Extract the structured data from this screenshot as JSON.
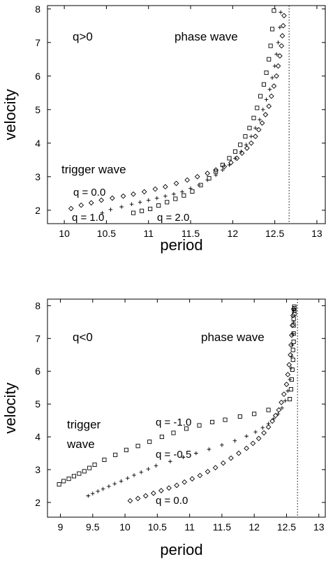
{
  "chart_data": [
    {
      "type": "scatter",
      "xlabel": "period",
      "ylabel": "velocity",
      "xlim": [
        9.8,
        13.1
      ],
      "ylim": [
        1.6,
        8.1
      ],
      "xticks": [
        "10",
        "10.5",
        "11",
        "11.5",
        "12",
        "12.5",
        "13"
      ],
      "yticks": [
        "2",
        "3",
        "4",
        "5",
        "6",
        "7",
        "8"
      ],
      "vline": 12.67,
      "annotations": {
        "sign": "q>0",
        "phase": "phase wave",
        "trigger": "trigger wave",
        "q_a": "q = 0.0",
        "q_b": "q = 1.0",
        "q_c": "q = 2.0"
      },
      "series": [
        {
          "name": "q = 0.0",
          "marker": "diamond",
          "x": [
            10.08,
            10.2,
            10.32,
            10.44,
            10.57,
            10.7,
            10.82,
            10.95,
            11.08,
            11.2,
            11.33,
            11.46,
            11.58,
            11.7,
            11.8,
            11.9,
            11.98,
            12.05,
            12.11,
            12.17,
            12.22,
            12.27,
            12.31,
            12.35,
            12.39,
            12.43,
            12.46,
            12.49,
            12.52,
            12.54,
            12.56,
            12.58,
            12.59,
            12.6,
            12.61
          ],
          "y": [
            2.05,
            2.15,
            2.22,
            2.3,
            2.36,
            2.42,
            2.48,
            2.55,
            2.63,
            2.7,
            2.8,
            2.9,
            3.0,
            3.1,
            3.2,
            3.3,
            3.42,
            3.55,
            3.7,
            3.85,
            4.0,
            4.2,
            4.4,
            4.6,
            4.85,
            5.1,
            5.4,
            5.7,
            6.0,
            6.3,
            6.6,
            6.9,
            7.2,
            7.5,
            7.8
          ]
        },
        {
          "name": "q = 1.0",
          "marker": "plus",
          "x": [
            10.45,
            10.55,
            10.68,
            10.8,
            10.9,
            11.0,
            11.1,
            11.2,
            11.3,
            11.4,
            11.5,
            11.6,
            11.7,
            11.8,
            11.88,
            11.96,
            12.03,
            12.1,
            12.16,
            12.22,
            12.27,
            12.32,
            12.36,
            12.4,
            12.44,
            12.47,
            12.5,
            12.52,
            12.54,
            12.56,
            12.57
          ],
          "y": [
            1.92,
            2.02,
            2.1,
            2.18,
            2.24,
            2.3,
            2.36,
            2.42,
            2.48,
            2.55,
            2.65,
            2.75,
            2.9,
            3.05,
            3.2,
            3.35,
            3.55,
            3.75,
            3.95,
            4.2,
            4.45,
            4.7,
            5.0,
            5.3,
            5.6,
            5.95,
            6.3,
            6.65,
            7.0,
            7.45,
            7.9
          ]
        },
        {
          "name": "q = 2.0",
          "marker": "square",
          "x": [
            10.82,
            10.92,
            11.02,
            11.12,
            11.22,
            11.32,
            11.42,
            11.52,
            11.62,
            11.72,
            11.8,
            11.88,
            11.96,
            12.03,
            12.09,
            12.15,
            12.2,
            12.25,
            12.29,
            12.33,
            12.37,
            12.4,
            12.43,
            12.45,
            12.47,
            12.49
          ],
          "y": [
            1.92,
            1.98,
            2.04,
            2.14,
            2.24,
            2.34,
            2.44,
            2.56,
            2.75,
            2.95,
            3.15,
            3.35,
            3.55,
            3.75,
            3.95,
            4.2,
            4.45,
            4.75,
            5.05,
            5.4,
            5.75,
            6.1,
            6.5,
            6.9,
            7.4,
            7.95
          ]
        }
      ]
    },
    {
      "type": "scatter",
      "xlabel": "period",
      "ylabel": "velocity",
      "xlim": [
        8.8,
        13.1
      ],
      "ylim": [
        1.55,
        8.2
      ],
      "xticks": [
        "9",
        "9.5",
        "10",
        "10.5",
        "11",
        "11.5",
        "12",
        "12.5",
        "13"
      ],
      "yticks": [
        "2",
        "3",
        "4",
        "5",
        "6",
        "7",
        "8"
      ],
      "vline": 12.67,
      "annotations": {
        "sign": "q<0",
        "phase": "phase wave",
        "trigger_1": "trigger",
        "trigger_2": "wave",
        "q_a": "q = -1.0",
        "q_b": "q = -0.5",
        "q_c": "q = 0.0"
      },
      "series": [
        {
          "name": "q = -1.0",
          "marker": "square",
          "x": [
            8.98,
            9.05,
            9.13,
            9.21,
            9.29,
            9.37,
            9.45,
            9.53,
            9.68,
            9.85,
            10.02,
            10.2,
            10.38,
            10.57,
            10.75,
            10.95,
            11.15,
            11.35,
            11.55,
            11.78,
            12.0,
            12.22,
            12.55,
            12.57,
            12.58,
            12.59,
            12.6,
            12.6,
            12.61,
            12.61,
            12.61,
            12.61,
            12.62,
            12.62,
            12.62,
            12.62
          ],
          "y": [
            2.55,
            2.65,
            2.72,
            2.8,
            2.88,
            2.95,
            3.05,
            3.15,
            3.3,
            3.45,
            3.6,
            3.72,
            3.85,
            4.0,
            4.12,
            4.25,
            4.35,
            4.45,
            4.52,
            4.62,
            4.7,
            4.82,
            5.15,
            5.45,
            5.75,
            6.05,
            6.35,
            6.65,
            6.9,
            7.15,
            7.4,
            7.6,
            7.75,
            7.85,
            7.92,
            7.97
          ]
        },
        {
          "name": "q = -0.5",
          "marker": "plus",
          "x": [
            9.43,
            9.5,
            9.58,
            9.66,
            9.75,
            9.84,
            9.94,
            10.04,
            10.14,
            10.25,
            10.36,
            10.48,
            10.7,
            10.9,
            11.1,
            11.3,
            11.5,
            11.7,
            11.88,
            12.02,
            12.13,
            12.22,
            12.3,
            12.37,
            12.43,
            12.48,
            12.52,
            12.55,
            12.57,
            12.58,
            12.59,
            12.6,
            12.61,
            12.61
          ],
          "y": [
            2.2,
            2.27,
            2.34,
            2.41,
            2.49,
            2.57,
            2.65,
            2.74,
            2.83,
            2.92,
            3.02,
            3.12,
            3.25,
            3.38,
            3.5,
            3.62,
            3.75,
            3.88,
            4.02,
            4.15,
            4.28,
            4.4,
            4.55,
            4.7,
            4.88,
            5.1,
            5.4,
            5.75,
            6.1,
            6.45,
            6.8,
            7.15,
            7.5,
            7.85
          ]
        },
        {
          "name": "q = 0.0",
          "marker": "diamond",
          "x": [
            10.08,
            10.2,
            10.32,
            10.44,
            10.56,
            10.68,
            10.8,
            10.92,
            11.04,
            11.16,
            11.28,
            11.4,
            11.52,
            11.64,
            11.76,
            11.88,
            11.98,
            12.07,
            12.15,
            12.22,
            12.28,
            12.33,
            12.38,
            12.42,
            12.46,
            12.5,
            12.52,
            12.54,
            12.56,
            12.57,
            12.58,
            12.59,
            12.6,
            12.61
          ],
          "y": [
            2.05,
            2.12,
            2.2,
            2.28,
            2.36,
            2.44,
            2.52,
            2.62,
            2.72,
            2.82,
            2.94,
            3.06,
            3.2,
            3.35,
            3.5,
            3.65,
            3.8,
            3.95,
            4.12,
            4.3,
            4.48,
            4.65,
            4.82,
            5.05,
            5.3,
            5.6,
            5.9,
            6.2,
            6.5,
            6.8,
            7.1,
            7.4,
            7.7,
            7.9
          ]
        }
      ]
    }
  ]
}
